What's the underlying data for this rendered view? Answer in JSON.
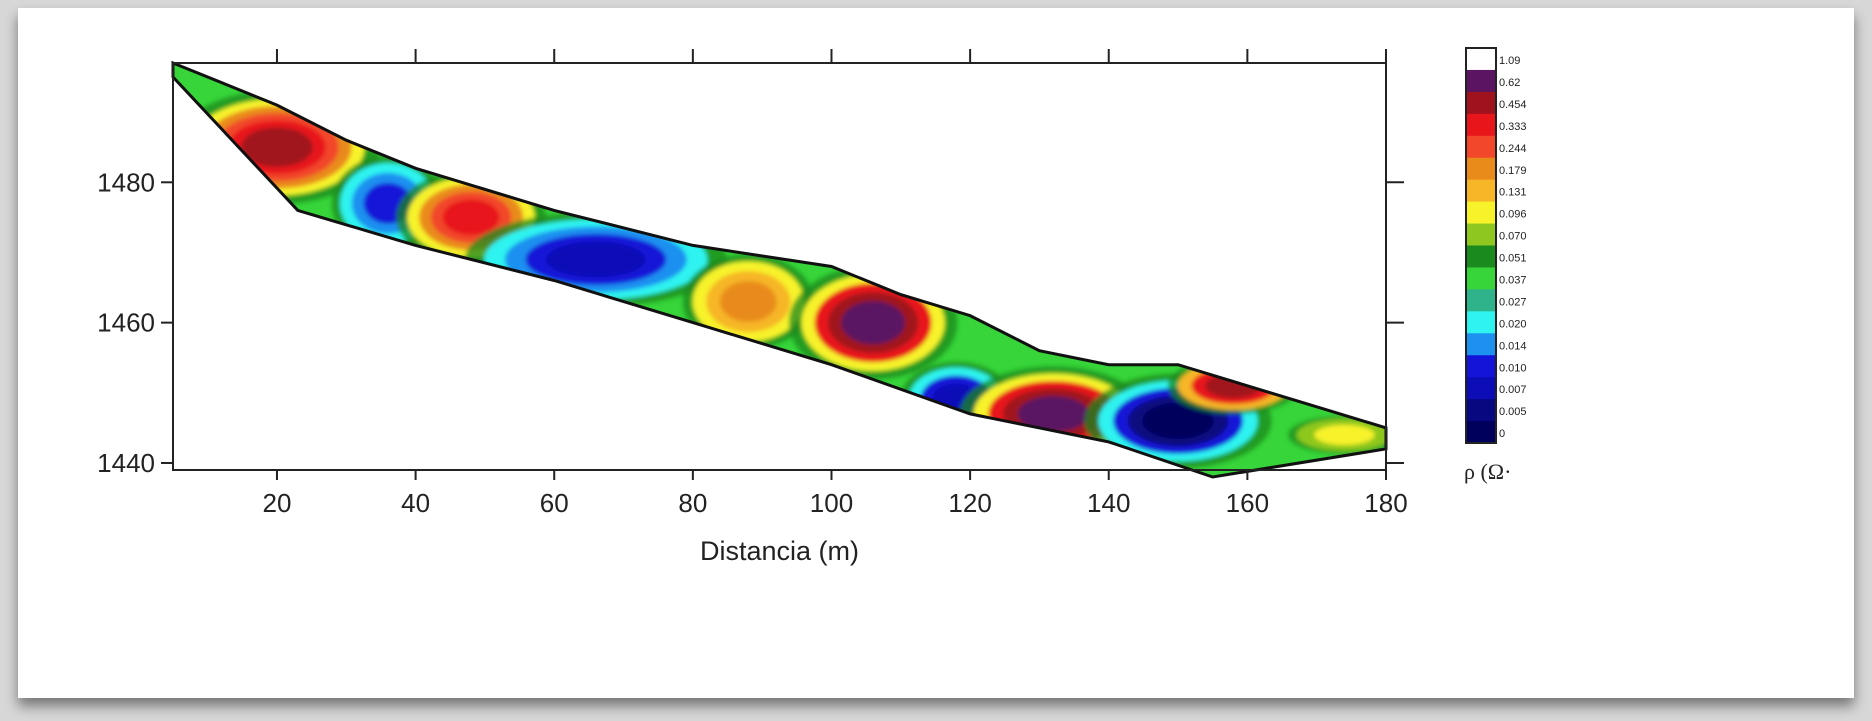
{
  "chart_data": {
    "type": "heatmap",
    "title": "",
    "xlabel": "Distancia (m)",
    "ylabel": "",
    "xlim": [
      5,
      180
    ],
    "ylim": [
      1439,
      1497
    ],
    "x_ticks": [
      20,
      40,
      60,
      80,
      100,
      120,
      140,
      160,
      180
    ],
    "y_ticks": [
      1440,
      1460,
      1480
    ],
    "grid": false,
    "colorbar": {
      "title": "ρ (Ω·",
      "placement": "right",
      "levels": [
        {
          "label": "1.09",
          "color": "#ffffff"
        },
        {
          "label": "0.62",
          "color": "#5a1462"
        },
        {
          "label": "0.454",
          "color": "#a0121e"
        },
        {
          "label": "0.333",
          "color": "#e8151b"
        },
        {
          "label": "0.244",
          "color": "#f2472a"
        },
        {
          "label": "0.179",
          "color": "#e98b1a"
        },
        {
          "label": "0.131",
          "color": "#f6b628"
        },
        {
          "label": "0.096",
          "color": "#f7f22a"
        },
        {
          "label": "0.070",
          "color": "#8ec71f"
        },
        {
          "label": "0.051",
          "color": "#1b8a1e"
        },
        {
          "label": "0.037",
          "color": "#37d43a"
        },
        {
          "label": "0.027",
          "color": "#2fb38b"
        },
        {
          "label": "0.020",
          "color": "#2ef3f0"
        },
        {
          "label": "0.014",
          "color": "#1e90f0"
        },
        {
          "label": "0.010",
          "color": "#1414d8"
        },
        {
          "label": "0.007",
          "color": "#0d0db8"
        },
        {
          "label": "0.005",
          "color": "#080880"
        },
        {
          "label": "0",
          "color": "#00005c"
        }
      ]
    },
    "section": {
      "top_profile": [
        [
          5,
          1497
        ],
        [
          20,
          1491
        ],
        [
          30,
          1486
        ],
        [
          40,
          1482
        ],
        [
          60,
          1476
        ],
        [
          80,
          1471
        ],
        [
          100,
          1468
        ],
        [
          110,
          1464
        ],
        [
          120,
          1461
        ],
        [
          130,
          1456
        ],
        [
          140,
          1454
        ],
        [
          150,
          1454
        ],
        [
          160,
          1451
        ],
        [
          170,
          1448
        ],
        [
          180,
          1445
        ]
      ],
      "bottom_profile": [
        [
          5,
          1495
        ],
        [
          23,
          1476
        ],
        [
          40,
          1471
        ],
        [
          60,
          1466
        ],
        [
          80,
          1460
        ],
        [
          100,
          1454
        ],
        [
          120,
          1447
        ],
        [
          140,
          1443
        ],
        [
          155,
          1438
        ],
        [
          180,
          1442
        ]
      ],
      "background_color": "#37d43a",
      "anomalies": [
        {
          "x": 20,
          "z": 1485,
          "rx": 11,
          "rz": 6,
          "colors": [
            "#f7f22a",
            "#e98b1a",
            "#f2472a",
            "#e8151b",
            "#a0121e"
          ]
        },
        {
          "x": 36,
          "z": 1477,
          "rx": 6,
          "rz": 5,
          "colors": [
            "#2ef3f0",
            "#1e90f0",
            "#1414d8"
          ]
        },
        {
          "x": 48,
          "z": 1475,
          "rx": 8,
          "rz": 5,
          "colors": [
            "#f7f22a",
            "#e98b1a",
            "#f2472a",
            "#e8151b"
          ]
        },
        {
          "x": 66,
          "z": 1469,
          "rx": 14,
          "rz": 5,
          "colors": [
            "#2ef3f0",
            "#1e90f0",
            "#1414d8",
            "#0d0db8"
          ]
        },
        {
          "x": 88,
          "z": 1463,
          "rx": 7,
          "rz": 5,
          "colors": [
            "#f7f22a",
            "#f6b628",
            "#e98b1a"
          ]
        },
        {
          "x": 106,
          "z": 1460,
          "rx": 9,
          "rz": 6,
          "colors": [
            "#f7f22a",
            "#e8151b",
            "#a0121e",
            "#5a1462"
          ]
        },
        {
          "x": 118,
          "z": 1449,
          "rx": 6,
          "rz": 4,
          "colors": [
            "#2ef3f0",
            "#1414d8",
            "#0d0db8"
          ]
        },
        {
          "x": 132,
          "z": 1447,
          "rx": 10,
          "rz": 5,
          "colors": [
            "#f7f22a",
            "#e8151b",
            "#a0121e",
            "#5a1462"
          ]
        },
        {
          "x": 150,
          "z": 1446,
          "rx": 10,
          "rz": 5,
          "colors": [
            "#2ef3f0",
            "#1414d8",
            "#080880",
            "#00005c"
          ]
        },
        {
          "x": 158,
          "z": 1451,
          "rx": 7,
          "rz": 3,
          "colors": [
            "#f6b628",
            "#e8151b",
            "#a0121e"
          ]
        },
        {
          "x": 174,
          "z": 1444,
          "rx": 6,
          "rz": 2,
          "colors": [
            "#8ec71f",
            "#f7f22a"
          ]
        }
      ]
    }
  }
}
